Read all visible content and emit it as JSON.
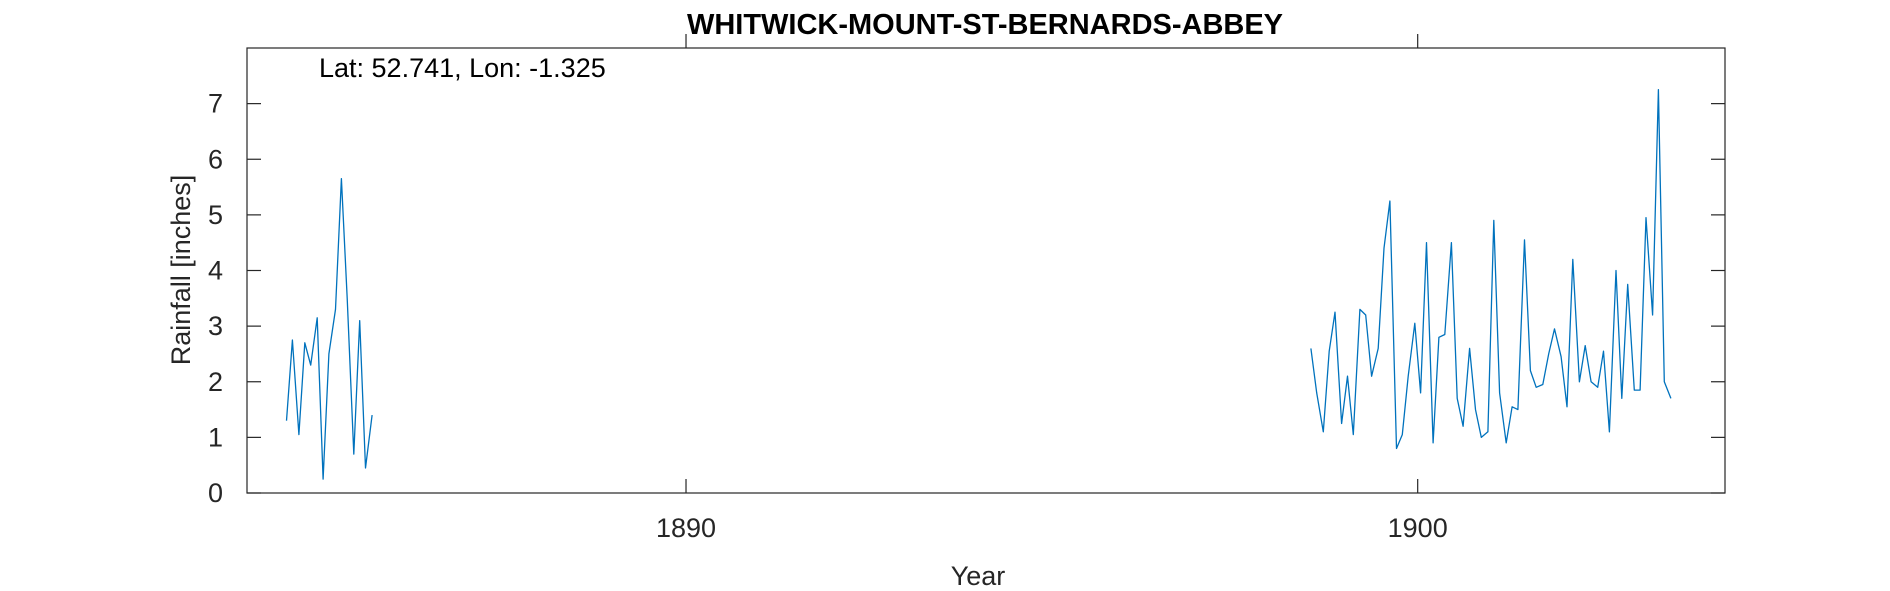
{
  "chart_data": {
    "type": "line",
    "title": "WHITWICK-MOUNT-ST-BERNARDS-ABBEY",
    "annotation": "Lat: 52.741, Lon: -1.325",
    "xlabel": "Year",
    "ylabel": "Rainfall [inches]",
    "xlim": [
      1884.0,
      1904.2
    ],
    "ylim": [
      0,
      8
    ],
    "xticks": [
      1890,
      1900
    ],
    "yticks": [
      0,
      1,
      2,
      3,
      4,
      5,
      6,
      7
    ],
    "grid": false,
    "line_color": "#0072BD",
    "series": [
      {
        "x": [
          1884.54,
          1884.62,
          1884.71,
          1884.79,
          1884.87,
          1884.96,
          1885.04,
          1885.12,
          1885.21,
          1885.29,
          1885.37,
          1885.46,
          1885.54,
          1885.62,
          1885.71,
          1885.79
        ],
        "values": [
          1.3,
          2.75,
          1.05,
          2.7,
          2.3,
          3.15,
          0.25,
          2.5,
          3.3,
          5.65,
          3.5,
          0.7,
          3.1,
          0.45,
          1.4,
          null
        ]
      },
      {
        "x": [
          1898.54,
          1898.62,
          1898.71,
          1898.79,
          1898.87,
          1898.96,
          1899.04,
          1899.12,
          1899.21,
          1899.29,
          1899.37,
          1899.46,
          1899.54,
          1899.62,
          1899.71,
          1899.79,
          1899.87,
          1899.96,
          1900.04,
          1900.12,
          1900.21,
          1900.29,
          1900.37,
          1900.46,
          1900.54,
          1900.62,
          1900.71,
          1900.79,
          1900.87,
          1900.96,
          1901.04,
          1901.12,
          1901.21,
          1901.29,
          1901.37,
          1901.46,
          1901.54,
          1901.62,
          1901.71,
          1901.79,
          1901.87,
          1901.96,
          1902.04,
          1902.12,
          1902.21,
          1902.29,
          1902.37,
          1902.46,
          1902.54,
          1902.62,
          1902.71,
          1902.79,
          1902.87,
          1902.96,
          1903.04,
          1903.12,
          1903.21,
          1903.29,
          1903.37,
          1903.46,
          1903.54,
          1903.62,
          1903.71,
          1903.79,
          1903.87,
          1903.96,
          1904.04,
          1904.12
        ],
        "values": [
          2.6,
          1.8,
          1.1,
          2.55,
          3.25,
          1.25,
          2.1,
          1.05,
          3.3,
          3.2,
          2.1,
          2.6,
          4.4,
          5.25,
          0.8,
          1.05,
          2.1,
          3.05,
          1.8,
          4.5,
          0.9,
          2.8,
          2.85,
          4.5,
          1.7,
          1.2,
          2.6,
          1.5,
          1.0,
          1.1,
          4.9,
          1.8,
          0.9,
          1.55,
          1.5,
          4.55,
          2.2,
          1.9,
          1.95,
          2.5,
          2.95,
          2.45,
          1.55,
          4.2,
          2.0,
          2.65,
          2.0,
          1.9,
          2.55,
          1.1,
          4.0,
          1.7,
          3.75,
          1.85,
          1.85,
          4.95,
          3.2,
          7.25,
          2.0,
          1.7,
          null,
          null,
          null,
          null,
          null,
          null,
          null,
          null
        ]
      }
    ]
  }
}
